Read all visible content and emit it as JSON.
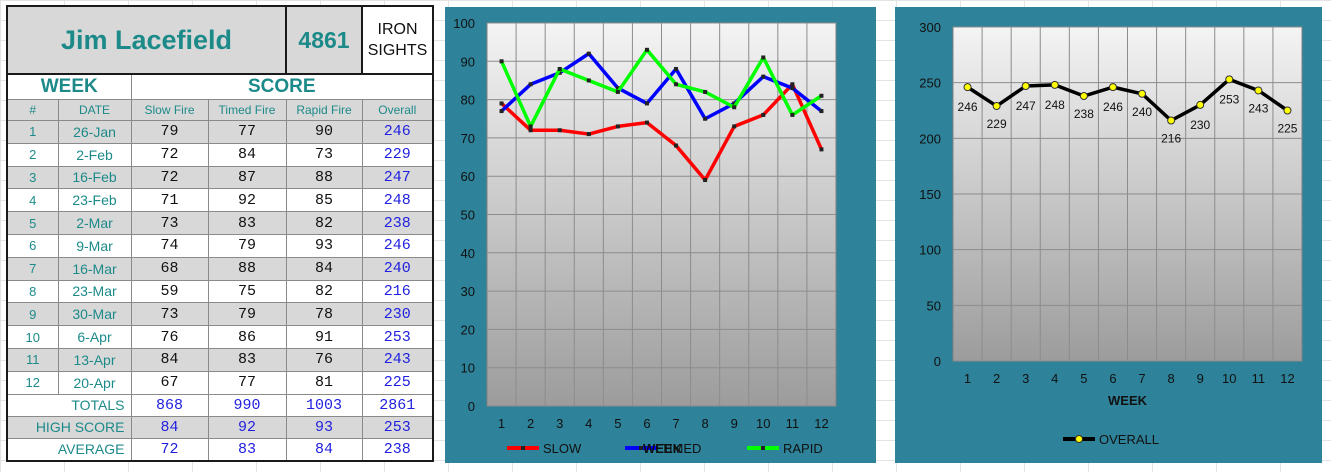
{
  "header": {
    "name": "Jim Lacefield",
    "id": "4861",
    "category_line1": "IRON",
    "category_line2": "SIGHTS"
  },
  "table": {
    "week_label": "WEEK",
    "score_label": "SCORE",
    "columns": [
      "#",
      "DATE",
      "Slow Fire",
      "Timed Fire",
      "Rapid Fire",
      "Overall"
    ],
    "rows": [
      {
        "num": "1",
        "date": "26-Jan",
        "slow": "79",
        "timed": "77",
        "rapid": "90",
        "overall": "246"
      },
      {
        "num": "2",
        "date": "2-Feb",
        "slow": "72",
        "timed": "84",
        "rapid": "73",
        "overall": "229"
      },
      {
        "num": "3",
        "date": "16-Feb",
        "slow": "72",
        "timed": "87",
        "rapid": "88",
        "overall": "247"
      },
      {
        "num": "4",
        "date": "23-Feb",
        "slow": "71",
        "timed": "92",
        "rapid": "85",
        "overall": "248"
      },
      {
        "num": "5",
        "date": "2-Mar",
        "slow": "73",
        "timed": "83",
        "rapid": "82",
        "overall": "238"
      },
      {
        "num": "6",
        "date": "9-Mar",
        "slow": "74",
        "timed": "79",
        "rapid": "93",
        "overall": "246"
      },
      {
        "num": "7",
        "date": "16-Mar",
        "slow": "68",
        "timed": "88",
        "rapid": "84",
        "overall": "240"
      },
      {
        "num": "8",
        "date": "23-Mar",
        "slow": "59",
        "timed": "75",
        "rapid": "82",
        "overall": "216"
      },
      {
        "num": "9",
        "date": "30-Mar",
        "slow": "73",
        "timed": "79",
        "rapid": "78",
        "overall": "230"
      },
      {
        "num": "10",
        "date": "6-Apr",
        "slow": "76",
        "timed": "86",
        "rapid": "91",
        "overall": "253"
      },
      {
        "num": "11",
        "date": "13-Apr",
        "slow": "84",
        "timed": "83",
        "rapid": "76",
        "overall": "243"
      },
      {
        "num": "12",
        "date": "20-Apr",
        "slow": "67",
        "timed": "77",
        "rapid": "81",
        "overall": "225"
      }
    ],
    "summary": [
      {
        "label": "TOTALS",
        "slow": "868",
        "timed": "990",
        "rapid": "1003",
        "overall": "2861"
      },
      {
        "label": "HIGH SCORE",
        "slow": "84",
        "timed": "92",
        "rapid": "93",
        "overall": "253"
      },
      {
        "label": "AVERAGE",
        "slow": "72",
        "timed": "83",
        "rapid": "84",
        "overall": "238"
      }
    ]
  },
  "chart_data": [
    {
      "type": "line",
      "x": [
        1,
        2,
        3,
        4,
        5,
        6,
        7,
        8,
        9,
        10,
        11,
        12
      ],
      "ylim": [
        0,
        100
      ],
      "yticks": [
        0,
        10,
        20,
        30,
        40,
        50,
        60,
        70,
        80,
        90,
        100
      ],
      "series": [
        {
          "name": "SLOW",
          "color": "#ff0000",
          "values": [
            79,
            72,
            72,
            71,
            73,
            74,
            68,
            59,
            73,
            76,
            84,
            67
          ]
        },
        {
          "name": "TIMED",
          "color": "#0000ff",
          "values": [
            77,
            84,
            87,
            92,
            83,
            79,
            88,
            75,
            79,
            86,
            83,
            77
          ]
        },
        {
          "name": "RAPID",
          "color": "#00ff00",
          "values": [
            90,
            73,
            88,
            85,
            82,
            93,
            84,
            82,
            78,
            91,
            76,
            81
          ]
        }
      ],
      "overlay_label": "WEEK",
      "grid": true,
      "legend_position": "bottom"
    },
    {
      "type": "line",
      "x": [
        1,
        2,
        3,
        4,
        5,
        6,
        7,
        8,
        9,
        10,
        11,
        12
      ],
      "ylim": [
        0,
        300
      ],
      "yticks": [
        0,
        50,
        100,
        150,
        200,
        250,
        300
      ],
      "xlabel": "WEEK",
      "series": [
        {
          "name": "OVERALL",
          "color": "#000000",
          "marker_color": "#ffff00",
          "values": [
            246,
            229,
            247,
            248,
            238,
            246,
            240,
            216,
            230,
            253,
            243,
            225
          ]
        }
      ],
      "data_labels": true,
      "grid": true,
      "legend_position": "bottom"
    }
  ]
}
